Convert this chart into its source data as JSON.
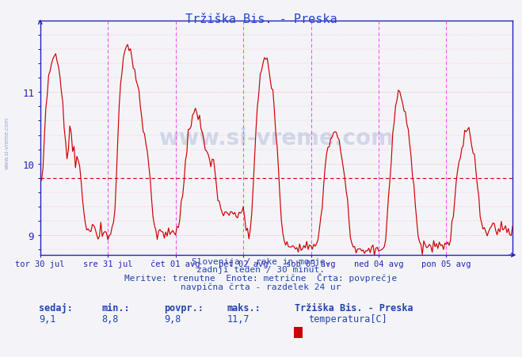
{
  "title": "Tržiška Bis. - Preska",
  "xlabel_labels": [
    "tor 30 jul",
    "sre 31 jul",
    "čet 01 avg",
    "pet 02 avg",
    "sob 03 avg",
    "ned 04 avg",
    "pon 05 avg"
  ],
  "ylabel_ticks": [
    9,
    10,
    11
  ],
  "ylim": [
    8.72,
    11.95
  ],
  "xlim_max": 335,
  "avg_line": 9.8,
  "sedaj": "9,1",
  "min": "8,8",
  "povpr": "9,8",
  "maks": "11,7",
  "station": "Tržiška Bis. - Preska",
  "param": "temperatura[C]",
  "subtitle1": "Slovenija / reke in morje.",
  "subtitle2": "zadnji teden / 30 minut.",
  "subtitle3": "Meritve: trenutne  Enote: metrične  Črta: povprečje",
  "subtitle4": "navpična črta - razdelek 24 ur",
  "stats_labels": [
    "sedaj:",
    "min.:",
    "povpr.:",
    "maks.:"
  ],
  "line_color": "#cc0000",
  "avg_line_color": "#cc0000",
  "vline_color": "#ff44ff",
  "grid_color_h": "#ee9999",
  "grid_color_v": "#ddcccc",
  "bg_color": "#f4f4f8",
  "axis_color": "#2222bb",
  "text_color": "#2244aa",
  "title_color": "#2244cc",
  "watermark_color": "#3355aa"
}
